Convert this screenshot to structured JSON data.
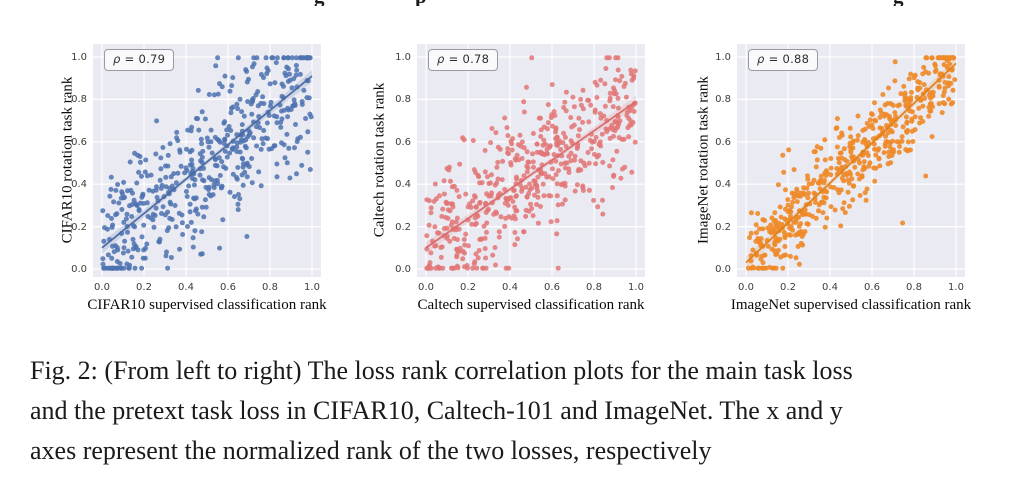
{
  "top_fragments": [
    "g",
    "p",
    "g"
  ],
  "caption": {
    "lines": [
      "Fig. 2: (From left to right) The loss rank correlation plots for the main task loss",
      "and the pretext task loss in CIFAR10, Caltech-101 and ImageNet. The x and y",
      "axes represent the normalized rank of the two losses, respectively"
    ]
  },
  "chart_data": [
    {
      "type": "scatter",
      "id": "cifar10",
      "annotation": "ρ = 0.79",
      "pearson_rho": 0.79,
      "xlabel": "CIFAR10 supervised classification rank",
      "ylabel": "CIFAR10 rotation task rank",
      "ticks": [
        0.0,
        0.2,
        0.4,
        0.6,
        0.8,
        1.0
      ],
      "tick_labels": [
        "0.0",
        "0.2",
        "0.4",
        "0.6",
        "0.8",
        "1.0"
      ],
      "xlim": [
        -0.045,
        1.045
      ],
      "ylim": [
        -0.04,
        1.06
      ],
      "grid": true,
      "background": "#eaeaf2",
      "grid_color": "#ffffff",
      "point_color": "#4c72b0",
      "line_color": "#47699f",
      "point_opacity": 0.85,
      "regression_line": {
        "x": [
          0,
          1
        ],
        "y": [
          0.1,
          0.91
        ]
      },
      "n_points": 500,
      "noise_sd": 0.18,
      "outlier_frac": 0.02,
      "seed": 7
    },
    {
      "type": "scatter",
      "id": "caltech",
      "annotation": "ρ = 0.78",
      "pearson_rho": 0.78,
      "xlabel": "Caltech supervised classification rank",
      "ylabel": "Caltech rotation task rank",
      "ticks": [
        0.0,
        0.2,
        0.4,
        0.6,
        0.8,
        1.0
      ],
      "tick_labels": [
        "0.0",
        "0.2",
        "0.4",
        "0.6",
        "0.8",
        "1.0"
      ],
      "xlim": [
        -0.045,
        1.045
      ],
      "ylim": [
        -0.04,
        1.06
      ],
      "grid": true,
      "background": "#eaeaf2",
      "grid_color": "#ffffff",
      "point_color": "#e27676",
      "line_color": "#d96a6a",
      "point_opacity": 0.85,
      "regression_line": {
        "x": [
          0,
          1
        ],
        "y": [
          0.1,
          0.79
        ]
      },
      "n_points": 520,
      "noise_sd": 0.16,
      "outlier_frac": 0.02,
      "seed": 21
    },
    {
      "type": "scatter",
      "id": "imagenet",
      "annotation": "ρ = 0.88",
      "pearson_rho": 0.88,
      "xlabel": "ImageNet supervised classification rank",
      "ylabel": "ImageNet rotation task rank",
      "ticks": [
        0.0,
        0.2,
        0.4,
        0.6,
        0.8,
        1.0
      ],
      "tick_labels": [
        "0.0",
        "0.2",
        "0.4",
        "0.6",
        "0.8",
        "1.0"
      ],
      "xlim": [
        -0.045,
        1.045
      ],
      "ylim": [
        -0.04,
        1.06
      ],
      "grid": true,
      "background": "#eaeaf2",
      "grid_color": "#ffffff",
      "point_color": "#ee8a28",
      "line_color": "#e07f1a",
      "point_opacity": 0.9,
      "regression_line": {
        "x": [
          0,
          1
        ],
        "y": [
          0.03,
          0.97
        ]
      },
      "n_points": 520,
      "noise_sd": 0.1,
      "outlier_frac": 0.03,
      "seed": 5
    }
  ]
}
